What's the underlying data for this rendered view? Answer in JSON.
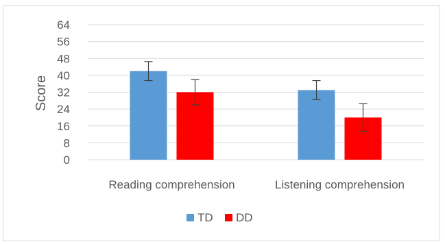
{
  "chart_data": {
    "type": "bar",
    "ylabel": "Score",
    "xlabel": "",
    "ylim": [
      0,
      64
    ],
    "yticks": [
      0,
      8,
      16,
      24,
      32,
      40,
      48,
      56,
      64
    ],
    "categories": [
      "Reading comprehension",
      "Listening comprehension"
    ],
    "series": [
      {
        "name": "TD",
        "color": "#5b9bd5",
        "values": [
          42,
          33
        ],
        "error": [
          4.5,
          4.5
        ]
      },
      {
        "name": "DD",
        "color": "#ff0000",
        "values": [
          32,
          20
        ],
        "error": [
          6,
          6.5
        ]
      }
    ],
    "grid": true,
    "legend_position": "bottom"
  }
}
